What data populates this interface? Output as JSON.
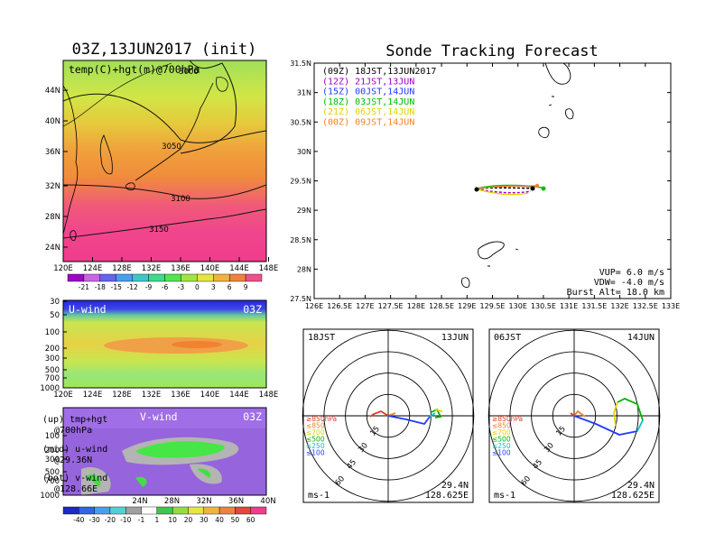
{
  "left": {
    "title": "03Z,13JUN2017 (init)",
    "map": {
      "label": "temp(C)+hgt(m)@700hPa",
      "lat_ticks": [
        "44N",
        "40N",
        "36N",
        "32N",
        "28N",
        "24N"
      ],
      "lon_ticks": [
        "120E",
        "124E",
        "128E",
        "132E",
        "136E",
        "140E",
        "144E",
        "148E"
      ],
      "contours": [
        "3000",
        "3050",
        "3100",
        "3150"
      ]
    },
    "temp_colorbar": [
      "-21",
      "-18",
      "-15",
      "-12",
      "-9",
      "-6",
      "-3",
      "0",
      "3",
      "6",
      "9"
    ],
    "uwind": {
      "label": "U-wind",
      "time": "03Z",
      "p_ticks": [
        "30",
        "50",
        "100",
        "200",
        "300",
        "500",
        "700",
        "1000"
      ],
      "lon_ticks": [
        "120E",
        "124E",
        "128E",
        "132E",
        "136E",
        "140E",
        "144E",
        "148E"
      ]
    },
    "vwind": {
      "label": "V-wind",
      "time": "03Z",
      "p_ticks": [
        "100",
        "200",
        "300",
        "500",
        "700",
        "1000"
      ],
      "lat_ticks": [
        "24N",
        "28N",
        "32N",
        "36N",
        "40N"
      ]
    },
    "legend": [
      {
        "a": "(up) tmp+hgt",
        "b": "@700hPa"
      },
      {
        "a": "(mid) u-wind",
        "b": "@29.36N"
      },
      {
        "a": "(bot) v-wind",
        "b": "@128.66E"
      }
    ],
    "wind_colorbar": [
      "-40",
      "-30",
      "-20",
      "-10",
      "-1",
      "1",
      "10",
      "20",
      "30",
      "40",
      "50",
      "60"
    ]
  },
  "right": {
    "title": "Sonde Tracking Forecast",
    "lat_ticks": [
      "31.5N",
      "31N",
      "30.5N",
      "30N",
      "29.5N",
      "29N",
      "28.5N",
      "28N",
      "27.5N"
    ],
    "lon_ticks": [
      "126E",
      "126.5E",
      "127E",
      "127.5E",
      "128E",
      "128.5E",
      "129E",
      "129.5E",
      "130E",
      "130.5E",
      "131E",
      "131.5E",
      "132E",
      "132.5E",
      "133E"
    ],
    "legend": [
      {
        "text": "(09Z) 18JST,13JUN2017",
        "color": "#000000"
      },
      {
        "text": "(12Z) 21JST,13JUN",
        "color": "#a000c8"
      },
      {
        "text": "(15Z) 00JST,14JUN",
        "color": "#1e3cff"
      },
      {
        "text": "(18Z) 03JST,14JUN",
        "color": "#00c000"
      },
      {
        "text": "(21Z) 06JST,14JUN",
        "color": "#e6d200"
      },
      {
        "text": "(00Z) 09JST,14JUN",
        "color": "#f08228"
      }
    ],
    "params": [
      "VUP= 6.0 m/s",
      "VDW= -4.0 m/s",
      "Burst Alt= 18.0 km"
    ]
  },
  "polars": [
    {
      "jst": "18JST",
      "date": "13JUN",
      "lat": "29.4N",
      "lon": "128.625E",
      "unit": "ms-1",
      "rings": [
        "15",
        "30",
        "45",
        "60"
      ],
      "levels": [
        {
          "t": "≥850hPa",
          "c": "#e03c28"
        },
        {
          "t": "≤850",
          "c": "#f08228"
        },
        {
          "t": "≤700",
          "c": "#e6d200"
        },
        {
          "t": "≤500",
          "c": "#00b400"
        },
        {
          "t": "≤250",
          "c": "#00c8c8"
        },
        {
          "t": "≤100",
          "c": "#1e3cff"
        }
      ]
    },
    {
      "jst": "06JST",
      "date": "14JUN",
      "lat": "29.4N",
      "lon": "128.625E",
      "unit": "ms-1",
      "rings": [
        "15",
        "30",
        "45",
        "60"
      ],
      "levels": [
        {
          "t": "≥850hPa",
          "c": "#e03c28"
        },
        {
          "t": "≤850",
          "c": "#f08228"
        },
        {
          "t": "≤700",
          "c": "#e6d200"
        },
        {
          "t": "≤500",
          "c": "#00b400"
        },
        {
          "t": "≤250",
          "c": "#00c8c8"
        },
        {
          "t": "≤100",
          "c": "#1e3cff"
        }
      ]
    }
  ]
}
